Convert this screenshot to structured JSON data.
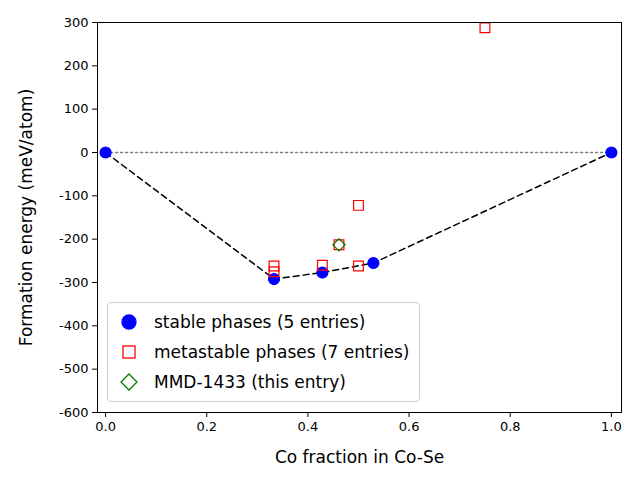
{
  "chart_data": {
    "type": "scatter",
    "x_label": "Co fraction in Co-Se",
    "y_label": "Formation energy (meV/atom)",
    "xlim": [
      -0.016,
      1.02
    ],
    "ylim": [
      -600,
      300
    ],
    "xticks": [
      {
        "value": 0,
        "label": "0.0"
      },
      {
        "value": 0.2,
        "label": "0.2"
      },
      {
        "value": 0.4,
        "label": "0.4"
      },
      {
        "value": 0.6,
        "label": "0.6"
      },
      {
        "value": 0.8,
        "label": "0.8"
      },
      {
        "value": 1,
        "label": "1.0"
      }
    ],
    "yticks": [
      -600,
      -500,
      -400,
      -300,
      -200,
      -100,
      0,
      100,
      200,
      300
    ],
    "legend": "lower left",
    "series": [
      {
        "name": "stable phases (5 entries)",
        "color": "#0000ff",
        "marker": "circle",
        "line_style": "dashed",
        "x": [
          0,
          0.333,
          0.4286,
          0.5294,
          1
        ],
        "values": [
          0,
          -292,
          -277,
          -255,
          0
        ]
      },
      {
        "name": "metastable phases (7 entries)",
        "color": "#ff0000",
        "marker": "square",
        "x": [
          0.333,
          0.333,
          0.4286,
          0.4615,
          0.5,
          0.5,
          0.75
        ],
        "values": [
          -262,
          -275,
          -260,
          -213,
          -122,
          -262,
          288
        ]
      },
      {
        "name": "MMD-1433 (this entry)",
        "color": "#008000",
        "marker": "diamond",
        "x": [
          0.4615
        ],
        "values": [
          -213
        ]
      }
    ]
  }
}
